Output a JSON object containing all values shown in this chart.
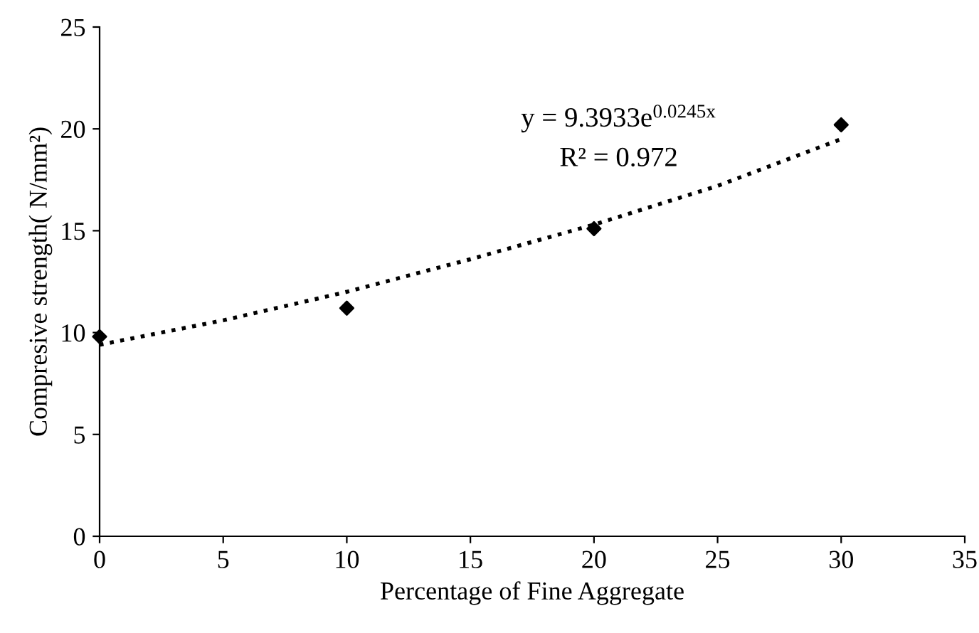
{
  "chart_data": {
    "type": "scatter",
    "xlabel": "Percentage of Fine Aggregate",
    "ylabel": "Compresive strength( N/mm²)",
    "xlim": [
      0,
      35
    ],
    "xticks": [
      0,
      5,
      10,
      15,
      20,
      25,
      30,
      35
    ],
    "ylim": [
      0,
      25
    ],
    "yticks": [
      0,
      5,
      10,
      15,
      20,
      25
    ],
    "grid": false,
    "series": [
      {
        "color": "#000000",
        "marker": "diamond",
        "x": [
          0,
          10,
          20,
          30
        ],
        "values": [
          9.8,
          11.2,
          15.1,
          20.2
        ]
      },
      {
        "type": "line",
        "color": "#000000",
        "line_style": "dotted",
        "marker": "none",
        "x": [
          0,
          5,
          10,
          15,
          20,
          25,
          30
        ],
        "values": [
          9.4,
          10.6,
          12.0,
          13.6,
          15.3,
          17.2,
          19.5
        ]
      }
    ],
    "annotations": [
      "y = 9.3933e$^{0.0245x}$",
      "R² = 0.972"
    ]
  }
}
